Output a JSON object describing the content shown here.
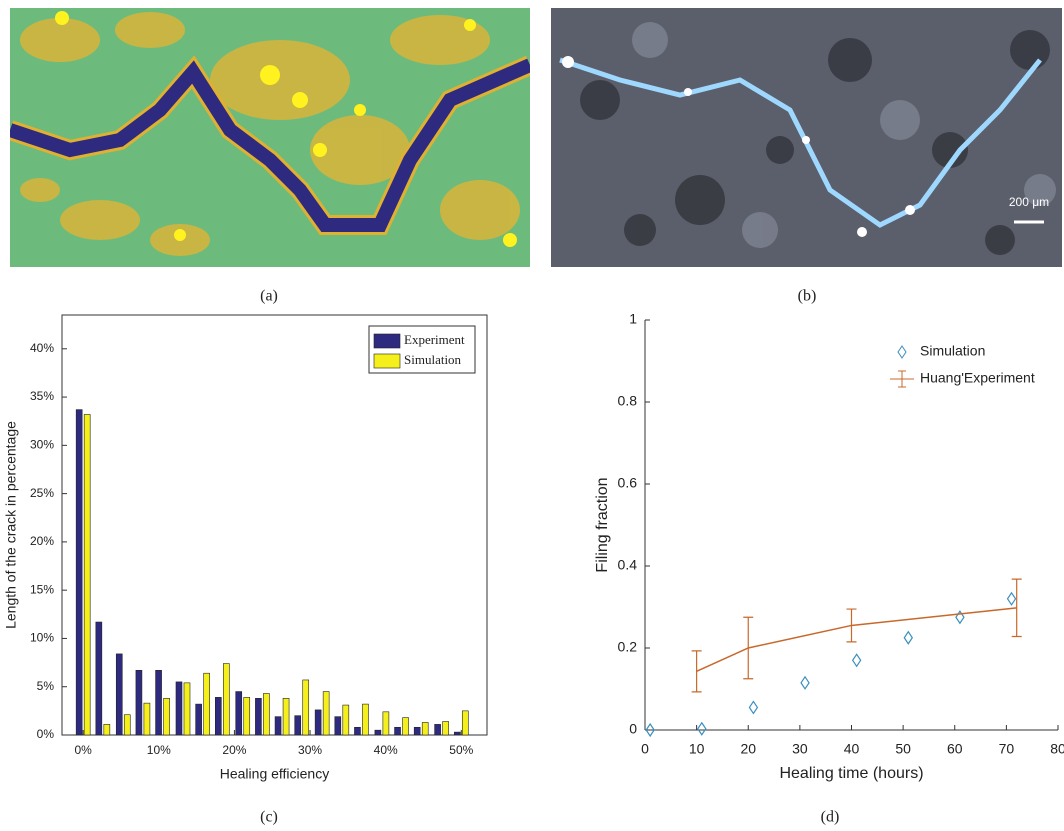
{
  "captions": [
    "(a)",
    "(b)",
    "(c)",
    "(d)"
  ],
  "scale_bar": "200 μm",
  "chart_data": [
    {
      "type": "bar",
      "xlabel": "Healing efficiency",
      "ylabel": "Length of the crack in percentage",
      "x": [
        0,
        2.6,
        5.3,
        7.9,
        10.5,
        13.2,
        15.8,
        18.4,
        21.1,
        23.7,
        26.3,
        28.9,
        31.6,
        34.2,
        36.8,
        39.5,
        42.1,
        44.7,
        47.4,
        50
      ],
      "series": [
        {
          "name": "Experiment",
          "color": "#2e2a7f",
          "values": [
            33.7,
            11.7,
            8.4,
            6.7,
            6.7,
            5.5,
            3.2,
            3.9,
            4.5,
            3.8,
            1.9,
            2.0,
            2.6,
            1.9,
            0.8,
            0.5,
            0.8,
            0.8,
            1.1,
            0.3
          ]
        },
        {
          "name": "Simulation",
          "color": "#f5f01c",
          "values": [
            33.2,
            1.1,
            2.1,
            3.3,
            3.8,
            5.4,
            6.4,
            7.4,
            3.9,
            4.3,
            3.8,
            5.7,
            4.5,
            3.1,
            3.2,
            2.4,
            1.8,
            1.3,
            1.4,
            2.5
          ]
        }
      ],
      "xlim": [
        -2.8,
        53.4
      ],
      "ylim": [
        0,
        43.5
      ],
      "xticks": [
        {
          "value": 0,
          "label": "0%"
        },
        {
          "value": 10,
          "label": "10%"
        },
        {
          "value": 20,
          "label": "20%"
        },
        {
          "value": 30,
          "label": "30%"
        },
        {
          "value": 40,
          "label": "40%"
        },
        {
          "value": 50,
          "label": "50%"
        }
      ],
      "yticks": [
        {
          "value": 0,
          "label": "0%"
        },
        {
          "value": 5,
          "label": "5%"
        },
        {
          "value": 10,
          "label": "10%"
        },
        {
          "value": 15,
          "label": "15%"
        },
        {
          "value": 20,
          "label": "20%"
        },
        {
          "value": 25,
          "label": "25%"
        },
        {
          "value": 30,
          "label": "30%"
        },
        {
          "value": 35,
          "label": "35%"
        },
        {
          "value": 40,
          "label": "40%"
        }
      ],
      "legend": "upper right",
      "box": true
    },
    {
      "type": "scatter",
      "xlabel": "Healing time (hours)",
      "ylabel": "Filing fraction",
      "series": [
        {
          "name": "Simulation",
          "color": "#3a8fbf",
          "style": "markers",
          "x": [
            1,
            11,
            21,
            31,
            41,
            51,
            61,
            71
          ],
          "values": [
            0,
            0.003,
            0.055,
            0.115,
            0.17,
            0.225,
            0.275,
            0.32
          ]
        },
        {
          "name": "Huang'Experiment",
          "color": "#c8682a",
          "style": "line-errorbar",
          "x": [
            10,
            20,
            40,
            72
          ],
          "values": [
            0.143,
            0.2,
            0.255,
            0.298
          ],
          "errors": [
            0.05,
            0.075,
            0.04,
            0.07
          ]
        }
      ],
      "xlim": [
        0,
        80
      ],
      "ylim": [
        0,
        1
      ],
      "xticks": [
        0,
        10,
        20,
        30,
        40,
        50,
        60,
        70,
        80
      ],
      "yticks": [
        0,
        0.2,
        0.4,
        0.6,
        0.8,
        1
      ],
      "legend": "upper right",
      "box": false
    }
  ]
}
